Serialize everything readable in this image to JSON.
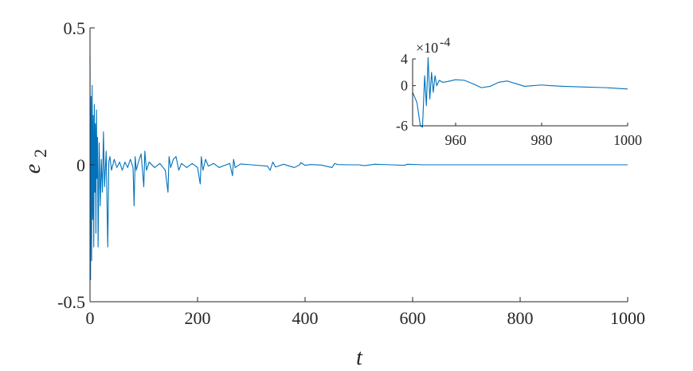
{
  "chart_data": [
    {
      "type": "line",
      "xlabel": "t",
      "ylabel": {
        "base": "e",
        "subscript": "2"
      },
      "xlim": [
        0,
        1000
      ],
      "ylim": [
        -0.5,
        0.5
      ],
      "xticks": [
        0,
        200,
        400,
        600,
        800,
        1000
      ],
      "xtick_labels": [
        "0",
        "200",
        "400",
        "600",
        "800",
        "1000"
      ],
      "yticks": [
        -0.5,
        0,
        0.5
      ],
      "ytick_labels": [
        "-0.5",
        "0",
        "0.5"
      ],
      "grid": false,
      "series": [
        {
          "color": "#0072BD",
          "x": [
            0,
            1,
            2,
            3,
            4,
            5,
            6,
            7,
            8,
            9,
            10,
            11,
            12,
            13,
            14,
            15,
            17,
            19,
            21,
            23,
            25,
            27,
            30,
            33,
            35,
            37,
            40,
            45,
            50,
            55,
            60,
            65,
            70,
            75,
            80,
            82,
            84,
            86,
            90,
            95,
            98,
            100,
            102,
            105,
            110,
            120,
            130,
            140,
            145,
            147,
            150,
            155,
            160,
            165,
            170,
            180,
            190,
            200,
            205,
            207,
            210,
            215,
            220,
            230,
            240,
            260,
            265,
            267,
            270,
            280,
            300,
            330,
            335,
            340,
            345,
            360,
            380,
            390,
            392,
            400,
            410,
            430,
            450,
            455,
            460,
            480,
            500,
            510,
            530,
            560,
            585,
            590,
            620,
            650,
            700,
            750,
            800,
            850,
            900,
            950,
            1000
          ],
          "y": [
            0.4,
            -0.42,
            0.25,
            -0.35,
            0.29,
            -0.2,
            0.18,
            -0.3,
            0.22,
            -0.1,
            0.15,
            -0.25,
            0.2,
            -0.05,
            0.1,
            -0.3,
            0.08,
            -0.15,
            0.02,
            -0.1,
            0.12,
            -0.08,
            0.05,
            -0.3,
            0.01,
            0.03,
            -0.02,
            0.02,
            -0.01,
            0.01,
            -0.02,
            0.01,
            -0.01,
            0.02,
            -0.01,
            -0.15,
            0.03,
            -0.02,
            0.01,
            0.04,
            -0.03,
            -0.08,
            0.05,
            -0.02,
            0.01,
            -0.01,
            0.005,
            -0.02,
            -0.1,
            0.03,
            -0.01,
            0.02,
            0.03,
            -0.02,
            0.005,
            -0.01,
            0.005,
            -0.01,
            -0.07,
            0.03,
            -0.02,
            0.02,
            -0.005,
            0.005,
            -0.01,
            0.005,
            -0.04,
            0.02,
            -0.01,
            0.003,
            0.0,
            -0.005,
            -0.02,
            0.01,
            -0.008,
            0.002,
            -0.01,
            0.0,
            0.008,
            -0.002,
            0.001,
            -0.001,
            -0.01,
            0.005,
            0.001,
            0.0,
            0.0,
            -0.003,
            0.002,
            0.0,
            -0.002,
            0.002,
            0.0,
            0.0,
            0.0,
            0.0,
            0.0,
            0.0,
            0.0,
            0.0,
            0.0
          ]
        }
      ]
    },
    {
      "type": "line",
      "inset": true,
      "xlim": [
        950,
        1000
      ],
      "ylim": [
        -6,
        4
      ],
      "y_exponent_label": "×10",
      "y_exponent": "-4",
      "xticks": [
        960,
        980,
        1000
      ],
      "xtick_labels": [
        "960",
        "980",
        "1000"
      ],
      "yticks": [
        -6,
        0,
        4
      ],
      "ytick_labels": [
        "-6",
        "0",
        "4"
      ],
      "series": [
        {
          "color": "#0072BD",
          "x": [
            950,
            951,
            951.8,
            952.3,
            952.8,
            953.2,
            953.6,
            954.0,
            954.4,
            954.8,
            955.2,
            955.6,
            956.2,
            957,
            958,
            960,
            962,
            964,
            966,
            968,
            970,
            972,
            974,
            976,
            978,
            980,
            982,
            985,
            990,
            995,
            1000
          ],
          "y": [
            -1.0,
            -2.5,
            -6.0,
            -6.2,
            1.5,
            -3.0,
            4.2,
            -2.0,
            2.0,
            -1.0,
            1.5,
            0.0,
            0.8,
            0.5,
            0.6,
            0.9,
            0.8,
            0.3,
            -0.3,
            -0.1,
            0.5,
            0.7,
            0.3,
            -0.1,
            0.0,
            0.1,
            0.0,
            -0.1,
            -0.2,
            -0.3,
            -0.5
          ]
        }
      ]
    }
  ]
}
